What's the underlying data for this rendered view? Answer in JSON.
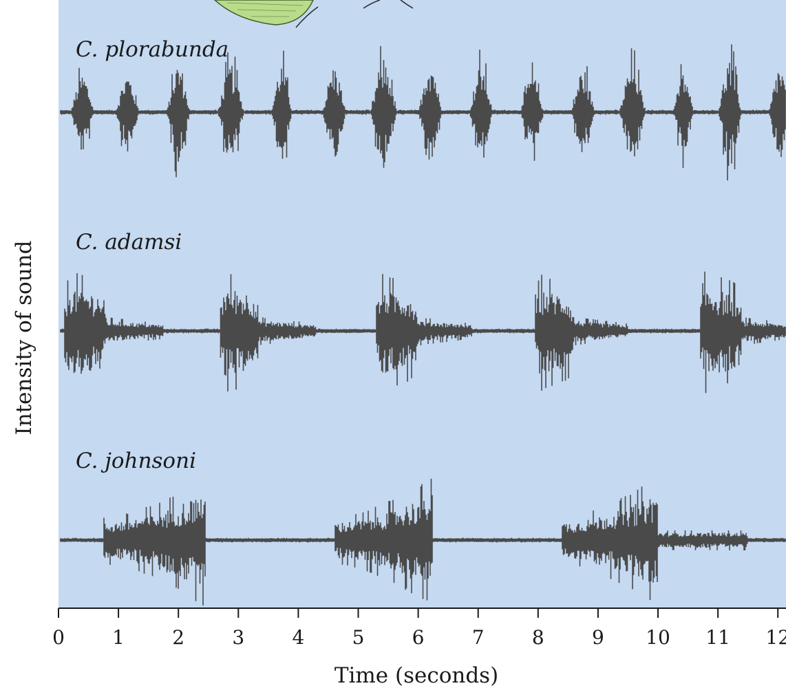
{
  "chart_data": {
    "type": "line",
    "xlabel": "Time (seconds)",
    "ylabel": "Intensity of sound",
    "xlim": [
      0,
      12.2
    ],
    "x_ticks": [
      "0",
      "1",
      "2",
      "3",
      "4",
      "5",
      "6",
      "7",
      "8",
      "9",
      "10",
      "11",
      "12"
    ],
    "grid": false,
    "colors": {
      "panel": "#c5d9f1",
      "waveform": "#4a4a4a",
      "axis": "#1a1a1a",
      "illustration": "#b9dc8a"
    },
    "series": [
      {
        "name": "C. plorabunda",
        "bursts": [
          {
            "start": 0.2,
            "end": 0.6,
            "peak": 0.7
          },
          {
            "start": 0.95,
            "end": 1.35,
            "peak": 0.7
          },
          {
            "start": 1.8,
            "end": 2.2,
            "peak": 0.9
          },
          {
            "start": 2.65,
            "end": 3.1,
            "peak": 0.9
          },
          {
            "start": 3.55,
            "end": 3.9,
            "peak": 0.9
          },
          {
            "start": 4.4,
            "end": 4.8,
            "peak": 0.85
          },
          {
            "start": 5.2,
            "end": 5.65,
            "peak": 1.0
          },
          {
            "start": 6.0,
            "end": 6.4,
            "peak": 1.0
          },
          {
            "start": 6.85,
            "end": 7.25,
            "peak": 0.9
          },
          {
            "start": 7.7,
            "end": 8.1,
            "peak": 0.7
          },
          {
            "start": 8.55,
            "end": 8.95,
            "peak": 0.8
          },
          {
            "start": 9.35,
            "end": 9.8,
            "peak": 0.9
          },
          {
            "start": 10.25,
            "end": 10.6,
            "peak": 0.75
          },
          {
            "start": 11.0,
            "end": 11.4,
            "peak": 1.0
          },
          {
            "start": 11.85,
            "end": 12.2,
            "peak": 0.85
          }
        ]
      },
      {
        "name": "C. adamsi",
        "bursts": [
          {
            "start": 0.1,
            "end": 0.8,
            "peak": 1.0,
            "tail_end": 1.75
          },
          {
            "start": 2.7,
            "end": 3.35,
            "peak": 1.0,
            "tail_end": 4.3
          },
          {
            "start": 5.3,
            "end": 6.0,
            "peak": 0.95,
            "tail_end": 6.9
          },
          {
            "start": 7.95,
            "end": 8.6,
            "peak": 0.95,
            "tail_end": 9.5
          },
          {
            "start": 10.7,
            "end": 11.4,
            "peak": 1.0,
            "tail_end": 12.2
          }
        ]
      },
      {
        "name": "C. johnsoni",
        "bursts": [
          {
            "start": 0.75,
            "end": 2.45,
            "peak": 1.0
          },
          {
            "start": 4.6,
            "end": 6.25,
            "peak": 1.0
          },
          {
            "start": 8.4,
            "end": 10.0,
            "peak": 1.0,
            "tail_end": 11.5
          }
        ]
      }
    ]
  }
}
